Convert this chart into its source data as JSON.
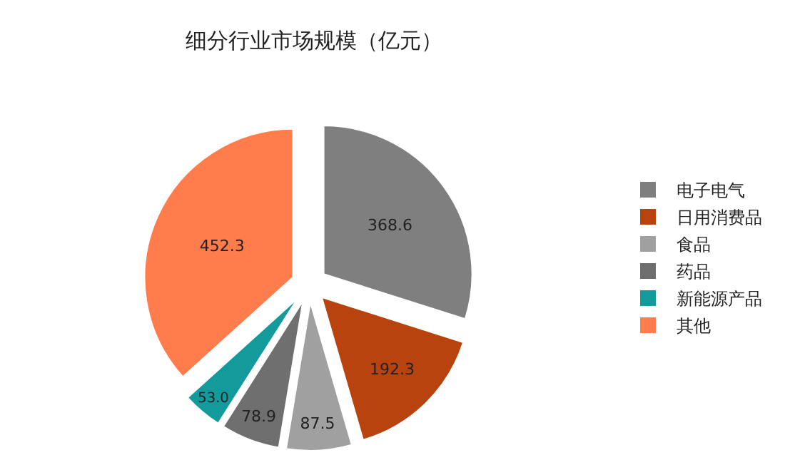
{
  "chart_data": {
    "type": "pie",
    "title": "细分行业市场规模（亿元）",
    "categories": [
      "电子电气",
      "日用消费品",
      "食品",
      "药品",
      "新能源产品",
      "其他"
    ],
    "values": [
      368.6,
      192.3,
      87.5,
      78.9,
      53.0,
      452.3
    ],
    "value_labels": [
      "368.6",
      "192.3",
      "87.5",
      "78.9",
      "53.0",
      "452.3"
    ],
    "colors": [
      "#7f7f7f",
      "#b8430e",
      "#a0a0a0",
      "#6f6f6f",
      "#139a9a",
      "#ff7c4c"
    ],
    "legend": "right"
  }
}
